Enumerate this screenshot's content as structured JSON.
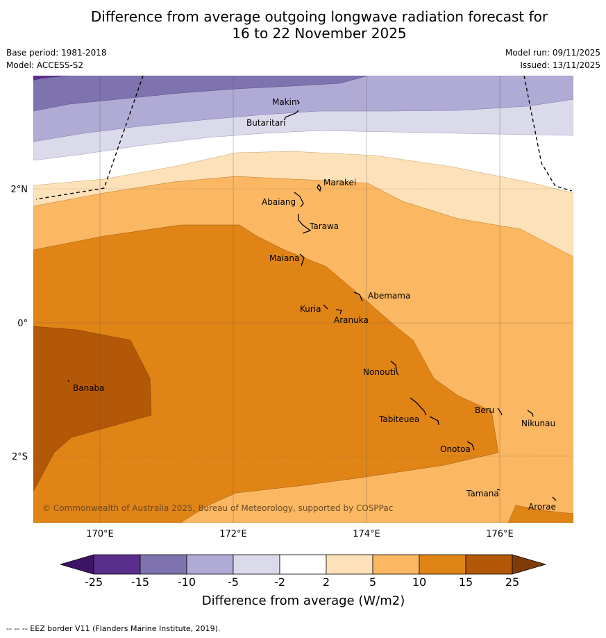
{
  "title_line1": "Difference from average outgoing longwave radiation forecast for",
  "title_line2": "16 to 22 November 2025",
  "base_period": "Base period: 1981-2018",
  "model": "Model: ACCESS-S2",
  "model_run": "Model run: 09/11/2025",
  "issued": "Issued: 13/11/2025",
  "copyright": "© Commonwealth of Australia 2025, Bureau of Meteorology, supported by COSPPac",
  "lon_ticks": [
    "170°E",
    "172°E",
    "174°E",
    "176°E"
  ],
  "lat_ticks": [
    "2°N",
    "0°",
    "2°S"
  ],
  "places": {
    "makin": "Makin",
    "butaritari": "Butaritari",
    "marakei": "Marakei",
    "abaiang": "Abaiang",
    "tarawa": "Tarawa",
    "maiana": "Maiana",
    "abemama": "Abemama",
    "kuria": "Kuria",
    "aranuka": "Aranuka",
    "banaba": "Banaba",
    "nonouti": "Nonouti",
    "beru": "Beru",
    "nikunau": "Nikunau",
    "tabiteuea": "Tabiteuea",
    "onotoa": "Onotoa",
    "tamana": "Tamana",
    "arorae": "Arorae"
  },
  "colorbar": {
    "title": "Difference from average (W/m2)",
    "labels": [
      "-25",
      "-15",
      "-10",
      "-5",
      "-2",
      "2",
      "5",
      "10",
      "15",
      "25"
    ],
    "colors": [
      "#3d1366",
      "#5a2e8c",
      "#7e73ae",
      "#b0abd4",
      "#dadaea",
      "#ffffff",
      "#fde1b8",
      "#fbb762",
      "#e08416",
      "#b35806",
      "#7f3b08"
    ]
  },
  "footnote": "--  --  -- EEZ border V11 (Flanders Marine Institute, 2019)."
}
